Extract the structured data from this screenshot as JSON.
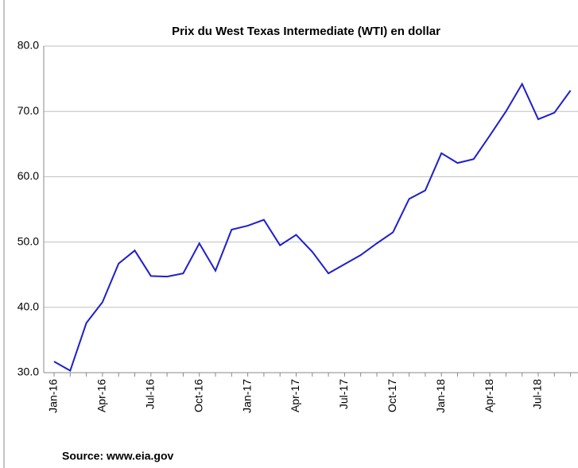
{
  "chart_data": {
    "type": "line",
    "title": "Prix du West Texas Intermediate (WTI) en dollar",
    "categories": [
      "Jan-16",
      null,
      null,
      "Apr-16",
      null,
      null,
      "Jul-16",
      null,
      null,
      "Oct-16",
      null,
      null,
      "Jan-17",
      null,
      null,
      "Apr-17",
      null,
      null,
      "Jul-17",
      null,
      null,
      "Oct-17",
      null,
      null,
      "Jan-18",
      null,
      null,
      "Apr-18",
      null,
      null,
      "Jul-18",
      null,
      null
    ],
    "series": [
      {
        "color": "#1f1fcc",
        "values": [
          31.7,
          30.3,
          37.6,
          40.8,
          46.7,
          48.7,
          44.8,
          44.7,
          45.2,
          49.8,
          45.6,
          51.9,
          52.5,
          53.4,
          49.5,
          51.1,
          48.5,
          45.2,
          46.6,
          48.0,
          49.8,
          51.5,
          56.6,
          57.9,
          63.6,
          62.1,
          62.7,
          66.3,
          70.0,
          74.2,
          68.8,
          69.8,
          73.2
        ]
      }
    ],
    "ylim": [
      30,
      80
    ],
    "yticks": [
      {
        "value": 30,
        "label": "30.0"
      },
      {
        "value": 40,
        "label": "40.0"
      },
      {
        "value": 50,
        "label": "50.0"
      },
      {
        "value": 60,
        "label": "60.0"
      },
      {
        "value": 70,
        "label": "70.0"
      },
      {
        "value": 80,
        "label": "80.0"
      }
    ],
    "grid": true,
    "source": "Source: www.eia.gov"
  }
}
